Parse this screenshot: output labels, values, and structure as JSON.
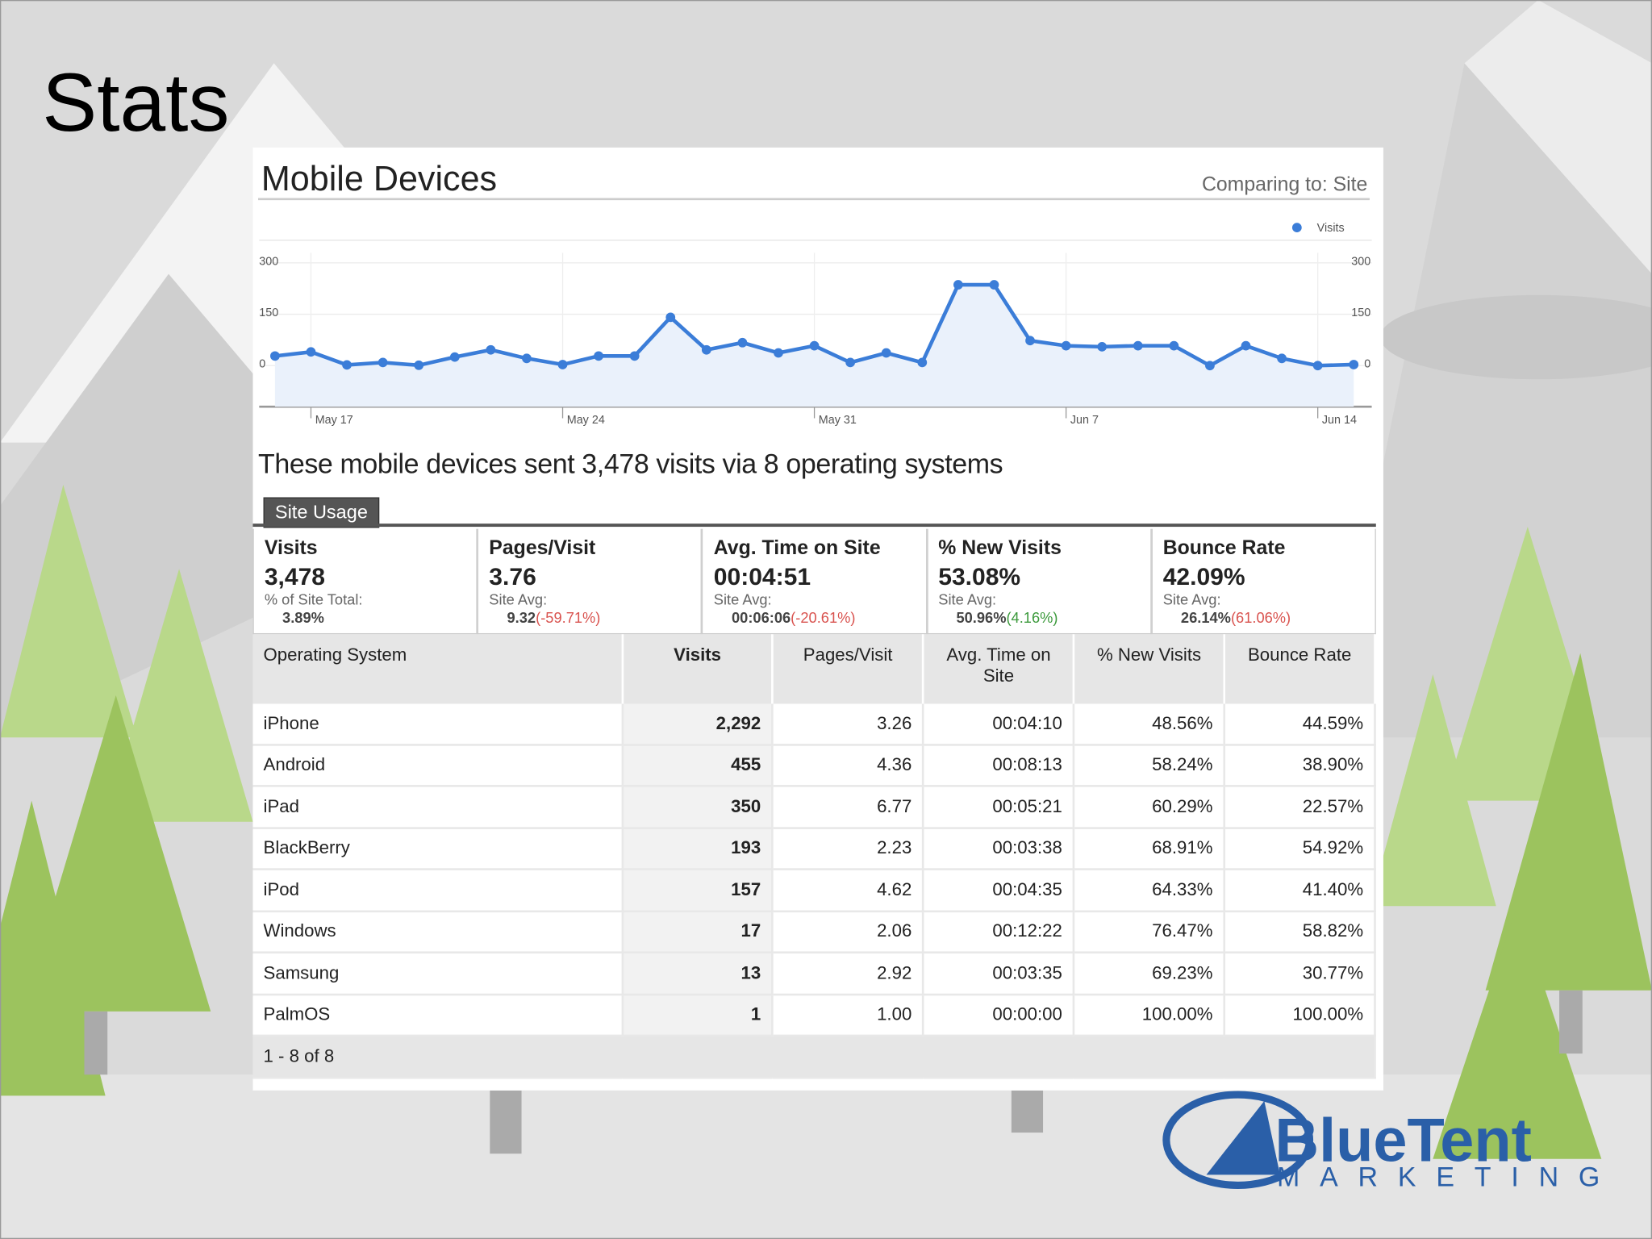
{
  "slide_title": "Stats",
  "chart_data": {
    "type": "line",
    "title": "Mobile Devices",
    "subtitle": "Comparing to: Site",
    "categories": [
      null,
      "May 17",
      null,
      null,
      null,
      null,
      null,
      null,
      "May 24",
      null,
      null,
      null,
      null,
      null,
      null,
      "May 31",
      null,
      null,
      null,
      null,
      null,
      null,
      "Jun 7",
      null,
      null,
      null,
      null,
      null,
      null,
      "Jun 14",
      null
    ],
    "series": [
      {
        "name": "Visits",
        "color": "#3b7dd8",
        "values": [
          28,
          40,
          2,
          9,
          1,
          25,
          46,
          21,
          3,
          28,
          28,
          141,
          46,
          67,
          37,
          58,
          9,
          37,
          9,
          236,
          236,
          73,
          58,
          55,
          58,
          58,
          0,
          58,
          21,
          0,
          3
        ]
      }
    ],
    "ylim": [
      -120,
      360
    ],
    "yticks": [
      0,
      150,
      300
    ],
    "grid": true,
    "legend": "top-right"
  },
  "heading": "These mobile devices sent 3,478 visits via 8 operating systems",
  "tab": "Site Usage",
  "summary": [
    {
      "label": "Visits",
      "value": "3,478",
      "sub_label": "% of Site Total:",
      "sub_value": "3.89%"
    },
    {
      "label": "Pages/Visit",
      "value": "3.76",
      "sub_label": "Site Avg:",
      "sub_value": "9.32",
      "change": "(-59.71%)",
      "change_color": "#d9534f"
    },
    {
      "label": "Avg. Time on Site",
      "value": "00:04:51",
      "sub_label": "Site Avg:",
      "sub_value": "00:06:06",
      "change": "(-20.61%)",
      "change_color": "#d9534f"
    },
    {
      "label": "% New Visits",
      "value": "53.08%",
      "sub_label": "Site Avg:",
      "sub_value": "50.96%",
      "change": "(4.16%)",
      "change_color": "#3c9a3c"
    },
    {
      "label": "Bounce Rate",
      "value": "42.09%",
      "sub_label": "Site Avg:",
      "sub_value": "26.14%",
      "change": "(61.06%)",
      "change_color": "#d9534f"
    }
  ],
  "table": {
    "columns": [
      "Operating System",
      "Visits",
      "Pages/Visit",
      "Avg. Time on Site",
      "% New Visits",
      "Bounce Rate"
    ],
    "rows": [
      [
        "iPhone",
        "2,292",
        "3.26",
        "00:04:10",
        "48.56%",
        "44.59%"
      ],
      [
        "Android",
        "455",
        "4.36",
        "00:08:13",
        "58.24%",
        "38.90%"
      ],
      [
        "iPad",
        "350",
        "6.77",
        "00:05:21",
        "60.29%",
        "22.57%"
      ],
      [
        "BlackBerry",
        "193",
        "2.23",
        "00:03:38",
        "68.91%",
        "54.92%"
      ],
      [
        "iPod",
        "157",
        "4.62",
        "00:04:35",
        "64.33%",
        "41.40%"
      ],
      [
        "Windows",
        "17",
        "2.06",
        "00:12:22",
        "76.47%",
        "58.82%"
      ],
      [
        "Samsung",
        "13",
        "2.92",
        "00:03:35",
        "69.23%",
        "30.77%"
      ],
      [
        "PalmOS",
        "1",
        "1.00",
        "00:00:00",
        "100.00%",
        "100.00%"
      ]
    ],
    "pagination": "1 - 8 of 8"
  },
  "logo": {
    "name": "BlueTent",
    "tagline": "MARKETING"
  }
}
